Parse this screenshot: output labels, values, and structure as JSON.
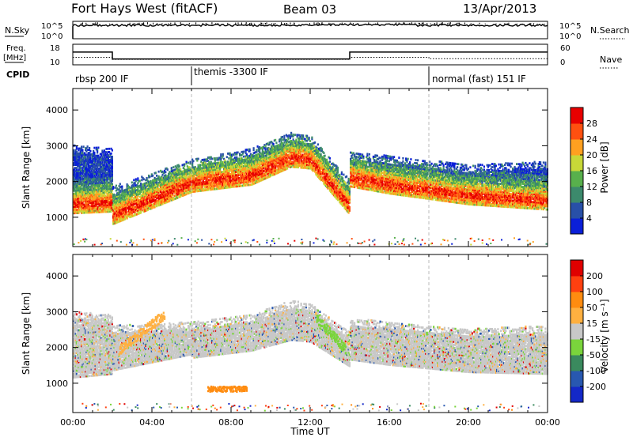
{
  "header": {
    "station": "Fort Hays West (fitACF)",
    "beam": "Beam 03",
    "date": "13/Apr/2013"
  },
  "top_panel": {
    "left_labels": {
      "nsky": "N.Sky",
      "freq_line1": "Freq.",
      "freq_line2": "[MHz]",
      "cpid": "CPID"
    },
    "right_labels": {
      "nsearch": "N.Search",
      "nave": "Nave"
    },
    "nsky_ticks": [
      "10^5",
      "10^0"
    ],
    "nsearch_ticks": [
      "10^5",
      "10^0"
    ],
    "freq_ticks": [
      "18",
      "10"
    ],
    "nave_ticks": [
      "60",
      "0"
    ],
    "cpid_segments": [
      {
        "start_h": 0,
        "label": "rbsp 200 IF"
      },
      {
        "start_h": 6,
        "label": "themis -3300 IF"
      },
      {
        "start_h": 18,
        "label": "normal (fast) 151 IF"
      }
    ],
    "freq_series": {
      "x_h": [
        0,
        2,
        2,
        14,
        14,
        24
      ],
      "freq_mhz": [
        14.5,
        14.5,
        11,
        11,
        14.5,
        14.5
      ]
    },
    "nave_series": {
      "x_h": [
        0,
        2,
        2,
        14,
        14,
        18,
        18,
        24
      ],
      "nave": [
        22,
        22,
        16,
        16,
        22,
        22,
        18,
        18
      ]
    }
  },
  "chart_data": [
    {
      "type": "heatmap",
      "name": "power",
      "xlabel": "",
      "ylabel": "Slant Range [km]",
      "xlim": [
        0,
        24
      ],
      "ylim": [
        180,
        4600
      ],
      "y_ticks": [
        1000,
        2000,
        3000,
        4000
      ],
      "colorbar": {
        "label": "Power [dB]",
        "ticks": [
          "4",
          "8",
          "12",
          "16",
          "20",
          "24",
          "28"
        ],
        "colors": [
          "#0a1fd8",
          "#2850a8",
          "#3c8a6c",
          "#58b04c",
          "#c8d838",
          "#ffa020",
          "#ff5010",
          "#e80000"
        ]
      },
      "bands": [
        {
          "t0": 0.0,
          "t1": 2.0,
          "core0": 1350,
          "core1": 1400,
          "top0": 2800,
          "top1": 2700
        },
        {
          "t0": 2.0,
          "t1": 6.0,
          "core0": 1050,
          "core1": 1950,
          "top0": 1650,
          "top1": 2400
        },
        {
          "t0": 6.0,
          "t1": 9.0,
          "core0": 1950,
          "core1": 2150,
          "top0": 2400,
          "top1": 2700
        },
        {
          "t0": 9.0,
          "t1": 11.0,
          "core0": 2150,
          "core1": 2650,
          "top0": 2700,
          "top1": 3150
        },
        {
          "t0": 11.0,
          "t1": 12.0,
          "core0": 2650,
          "core1": 2600,
          "top0": 3150,
          "top1": 3050
        },
        {
          "t0": 12.0,
          "t1": 14.0,
          "core0": 2600,
          "core1": 1300,
          "top0": 3050,
          "top1": 1800
        },
        {
          "t0": 14.0,
          "t1": 16.0,
          "core0": 2100,
          "core1": 1900,
          "top0": 2600,
          "top1": 2500
        },
        {
          "t0": 16.0,
          "t1": 20.0,
          "core0": 1900,
          "core1": 1600,
          "top0": 2500,
          "top1": 2250
        },
        {
          "t0": 20.0,
          "t1": 24.0,
          "core0": 1600,
          "core1": 1450,
          "top0": 2250,
          "top1": 2350
        }
      ]
    },
    {
      "type": "heatmap",
      "name": "velocity",
      "xlabel": "Time UT",
      "ylabel": "Slant Range [km]",
      "xlim": [
        0,
        24
      ],
      "ylim": [
        180,
        4600
      ],
      "y_ticks": [
        1000,
        2000,
        3000,
        4000
      ],
      "x_ticks": [
        "00:00",
        "04:00",
        "08:00",
        "12:00",
        "16:00",
        "20:00",
        "00:00"
      ],
      "x_tick_values": [
        0,
        4,
        8,
        12,
        16,
        20,
        24
      ],
      "colorbar": {
        "label": "Velocity [m s⁻¹]",
        "ticks": [
          "200",
          "100",
          "50",
          "15",
          "-15",
          "-50",
          "-100",
          "-200"
        ],
        "colors": [
          "#1428c8",
          "#2858b0",
          "#3a8a5e",
          "#7ad43c",
          "#c8c8c8",
          "#ffb040",
          "#ff8c10",
          "#ff4010",
          "#e00000"
        ]
      },
      "bands": [
        {
          "t0": 0.0,
          "t1": 2.0,
          "core0": 1400,
          "core1": 1500,
          "top0": 2800,
          "top1": 2700
        },
        {
          "t0": 2.0,
          "t1": 6.0,
          "core0": 1600,
          "core1": 2050,
          "top0": 2400,
          "top1": 2500
        },
        {
          "t0": 6.0,
          "t1": 9.0,
          "core0": 1950,
          "core1": 2150,
          "top0": 2500,
          "top1": 2700
        },
        {
          "t0": 9.0,
          "t1": 11.0,
          "core0": 2150,
          "core1": 2450,
          "top0": 2700,
          "top1": 3100
        },
        {
          "t0": 11.0,
          "t1": 12.0,
          "core0": 2450,
          "core1": 2400,
          "top0": 3100,
          "top1": 3000
        },
        {
          "t0": 12.0,
          "t1": 14.0,
          "core0": 2400,
          "core1": 1700,
          "top0": 3000,
          "top1": 2200
        },
        {
          "t0": 14.0,
          "t1": 16.0,
          "core0": 1900,
          "core1": 1750,
          "top0": 2600,
          "top1": 2500
        },
        {
          "t0": 16.0,
          "t1": 20.0,
          "core0": 1750,
          "core1": 1550,
          "top0": 2500,
          "top1": 2300
        },
        {
          "t0": 20.0,
          "t1": 24.0,
          "core0": 1550,
          "core1": 1500,
          "top0": 2300,
          "top1": 2400
        }
      ],
      "features": [
        {
          "t0": 2.3,
          "t1": 4.6,
          "r0": 1900,
          "r1": 2900,
          "color": "#ffb040",
          "kind": "slant"
        },
        {
          "t0": 6.8,
          "t1": 8.8,
          "r0": 820,
          "r1": 820,
          "color": "#ff8c10",
          "kind": "flat"
        },
        {
          "t0": 12.3,
          "t1": 13.8,
          "r0": 2800,
          "r1": 1900,
          "color": "#7ad43c",
          "kind": "slant"
        }
      ]
    }
  ]
}
